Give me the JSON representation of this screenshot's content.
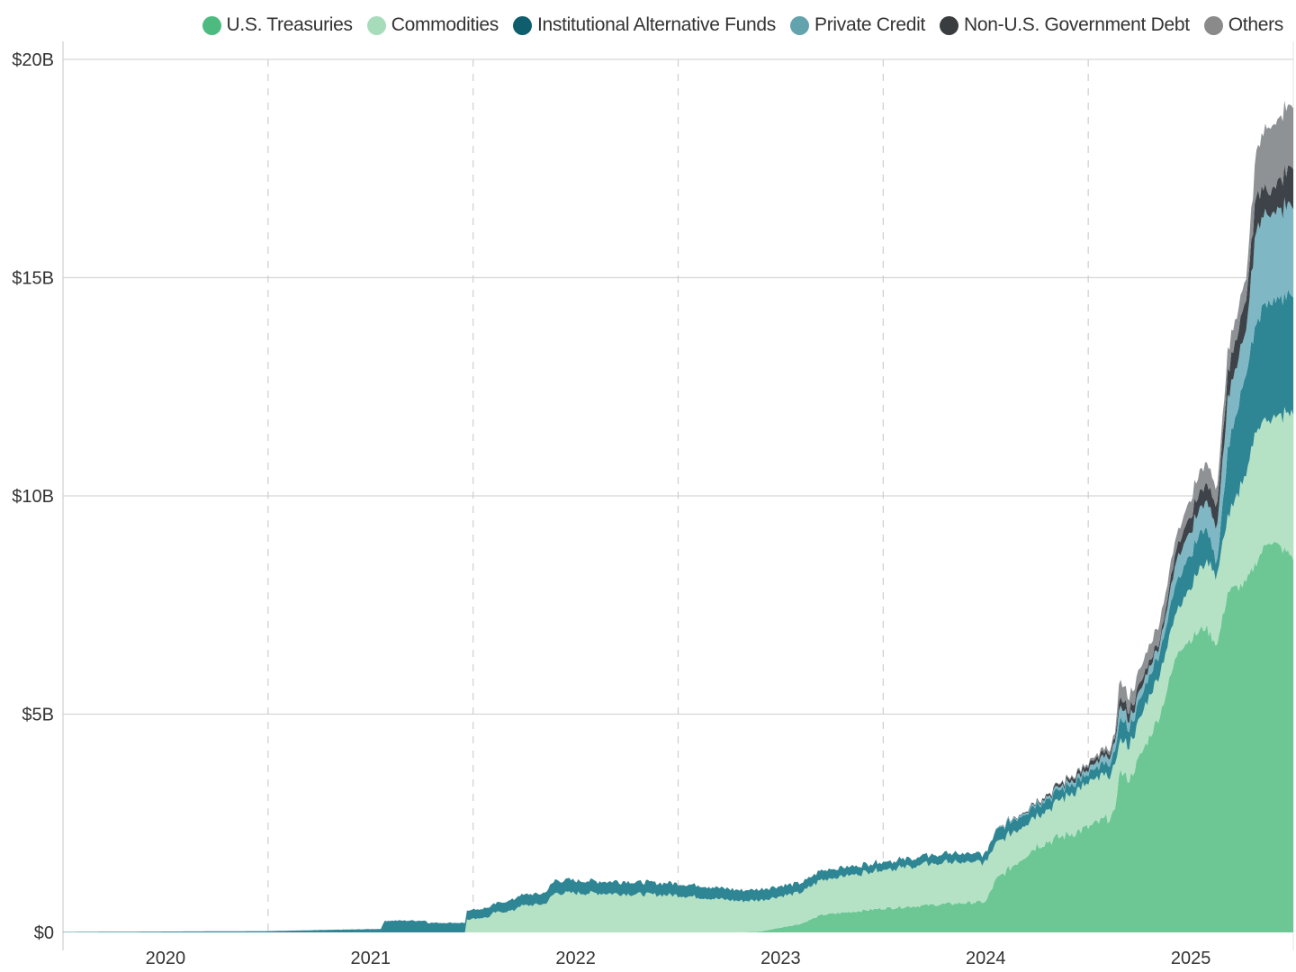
{
  "chart_data": {
    "type": "area",
    "stacked": true,
    "title": "",
    "xlabel": "",
    "ylabel": "",
    "xlim": [
      2020.0,
      2026.0
    ],
    "ylim": [
      0,
      20
    ],
    "y_unit": "billion USD",
    "x_ticks": [
      "2020",
      "2021",
      "2022",
      "2023",
      "2024",
      "2025"
    ],
    "y_ticks": [
      "$0",
      "$5B",
      "$10B",
      "$15B",
      "$20B"
    ],
    "grid": {
      "horizontal": "solid",
      "vertical": "dashed at year boundaries"
    },
    "legend_position": "top-right",
    "x": [
      2020.0,
      2021.0,
      2021.55,
      2021.57,
      2021.77,
      2021.78,
      2021.96,
      2021.97,
      2022.08,
      2022.1,
      2022.2,
      2022.22,
      2022.35,
      2022.4,
      2022.6,
      2023.0,
      2023.3,
      2023.4,
      2023.6,
      2023.7,
      2024.0,
      2024.3,
      2024.5,
      2024.55,
      2024.75,
      2025.0,
      2025.13,
      2025.15,
      2025.2,
      2025.35,
      2025.44,
      2025.57,
      2025.63,
      2025.68,
      2025.77,
      2025.82,
      2025.88,
      2026.0
    ],
    "series": [
      {
        "name": "U.S. Treasuries",
        "color": "#6cc795",
        "legend_color": "#4dbb7f",
        "values": [
          0,
          0,
          0,
          0,
          0,
          0,
          0,
          0,
          0,
          0,
          0,
          0,
          0,
          0,
          0,
          0,
          0,
          0.02,
          0.2,
          0.4,
          0.55,
          0.65,
          0.7,
          1.2,
          2.0,
          2.4,
          2.7,
          3.7,
          3.5,
          5.0,
          6.5,
          7.0,
          6.6,
          7.8,
          8.0,
          8.5,
          9.0,
          8.6
        ]
      },
      {
        "name": "Commodities",
        "color": "#b5e2c5",
        "legend_color": "#a7dcbb",
        "values": [
          0,
          0,
          0,
          0,
          0,
          0,
          0,
          0.3,
          0.35,
          0.45,
          0.5,
          0.6,
          0.65,
          0.9,
          0.9,
          0.85,
          0.72,
          0.72,
          0.72,
          0.8,
          0.9,
          0.95,
          0.9,
          0.85,
          0.7,
          1.0,
          1.0,
          0.7,
          0.8,
          1.0,
          1.0,
          1.5,
          1.6,
          1.7,
          2.5,
          3.0,
          2.8,
          3.3
        ]
      },
      {
        "name": "Institutional Alternative Funds",
        "color": "#2e8694",
        "legend_color": "#0f5e6e",
        "values": [
          0.01,
          0.03,
          0.08,
          0.27,
          0.27,
          0.22,
          0.22,
          0.2,
          0.22,
          0.2,
          0.25,
          0.25,
          0.25,
          0.3,
          0.28,
          0.28,
          0.25,
          0.25,
          0.22,
          0.22,
          0.18,
          0.2,
          0.2,
          0.3,
          0.25,
          0.2,
          0.3,
          0.5,
          0.4,
          0.5,
          0.7,
          0.8,
          0.3,
          1.5,
          2.3,
          2.5,
          2.7,
          2.7
        ]
      },
      {
        "name": "Private Credit",
        "color": "#7fb8c4",
        "legend_color": "#63a3ae",
        "values": [
          0,
          0,
          0,
          0,
          0,
          0,
          0,
          0,
          0,
          0,
          0,
          0,
          0,
          0,
          0,
          0,
          0,
          0,
          0,
          0,
          0,
          0,
          0,
          0.02,
          0.05,
          0.1,
          0.2,
          0.3,
          0.2,
          0.2,
          0.5,
          0.6,
          0.8,
          1.2,
          1.0,
          2.2,
          2.0,
          2.1
        ]
      },
      {
        "name": "Non-U.S. Government Debt",
        "color": "#3d4348",
        "legend_color": "#3a3d40",
        "values": [
          0,
          0,
          0,
          0,
          0,
          0,
          0,
          0,
          0,
          0,
          0,
          0,
          0,
          0,
          0,
          0,
          0,
          0,
          0,
          0,
          0,
          0,
          0,
          0,
          0.03,
          0.1,
          0.1,
          0.2,
          0.2,
          0.1,
          0.3,
          0.4,
          0.5,
          0.6,
          0.7,
          0.8,
          0.5,
          0.9
        ]
      },
      {
        "name": "Others",
        "color": "#8e9295",
        "legend_color": "#8a8a8a",
        "values": [
          0,
          0,
          0,
          0,
          0,
          0,
          0,
          0,
          0,
          0,
          0,
          0,
          0,
          0,
          0,
          0,
          0,
          0,
          0,
          0,
          0,
          0,
          0,
          0,
          0,
          0.05,
          0.1,
          0.4,
          0.3,
          0.4,
          0.3,
          0.5,
          0.4,
          0.5,
          0.5,
          1.0,
          1.5,
          1.4
        ]
      }
    ]
  }
}
